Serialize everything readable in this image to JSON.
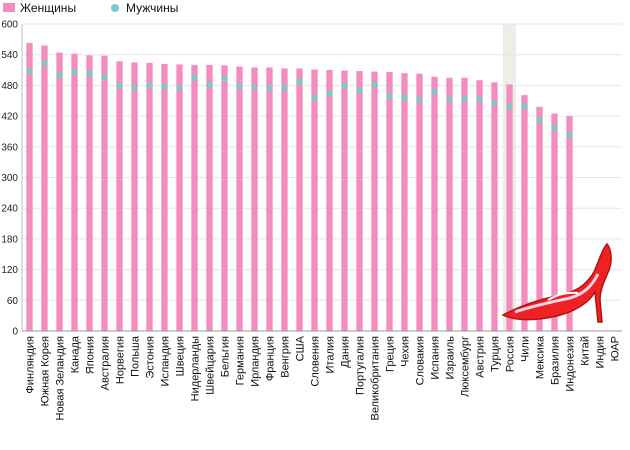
{
  "chart_data": {
    "type": "bar",
    "title": "",
    "xlabel": "",
    "ylabel": "",
    "ylim": [
      0,
      600
    ],
    "yticks": [
      0,
      60,
      120,
      180,
      240,
      300,
      360,
      420,
      480,
      540,
      600
    ],
    "grid": true,
    "legend_position": "top-left",
    "highlighted_category": "Россия",
    "categories": [
      "Финляндия",
      "Южная Корея",
      "Новая Зеландия",
      "Канада",
      "Япония",
      "Австралия",
      "Норвегия",
      "Польша",
      "Эстония",
      "Исландия",
      "Швеция",
      "Нидерланды",
      "Швейцария",
      "Бельгия",
      "Германия",
      "Ирландия",
      "Франция",
      "Венгрия",
      "США",
      "Словения",
      "Италия",
      "Дания",
      "Португалия",
      "Великобритания",
      "Греция",
      "Чехия",
      "Словакия",
      "Испания",
      "Израиль",
      "Люксембург",
      "Австрия",
      "Турция",
      "Россия",
      "Чили",
      "Мексика",
      "Бразилия",
      "Индонезия",
      "Китай",
      "Индия",
      "ЮАР"
    ],
    "series": [
      {
        "name": "Женщины",
        "color": "#f48cc0",
        "style": "bar",
        "values": [
          563,
          558,
          544,
          542,
          539,
          538,
          527,
          525,
          524,
          522,
          521,
          520,
          520,
          519,
          517,
          515,
          515,
          513,
          513,
          511,
          510,
          509,
          508,
          507,
          506,
          504,
          503,
          497,
          495,
          495,
          490,
          486,
          482,
          461,
          438,
          425,
          420,
          null,
          null,
          null
        ]
      },
      {
        "name": "Мужчины",
        "color": "#7ec9c7",
        "style": "dot",
        "values": [
          508,
          523,
          500,
          507,
          503,
          496,
          480,
          476,
          480,
          478,
          476,
          495,
          481,
          493,
          478,
          477,
          475,
          476,
          488,
          456,
          464,
          480,
          470,
          481,
          459,
          456,
          452,
          467,
          452,
          453,
          453,
          446,
          438,
          439,
          413,
          397,
          383,
          null,
          null,
          null
        ]
      }
    ],
    "icon": "high-heel-shoe-icon"
  }
}
